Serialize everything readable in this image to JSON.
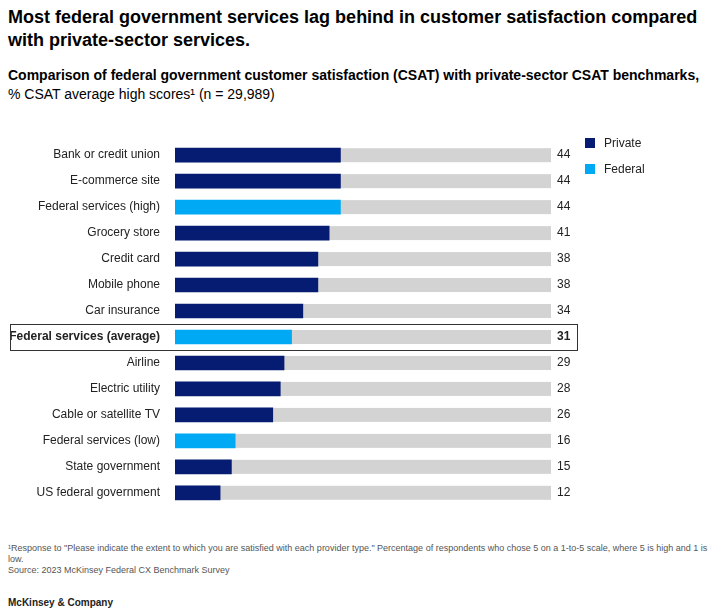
{
  "chart_data": {
    "type": "bar",
    "orientation": "horizontal",
    "title": "Most federal government services lag behind in customer satisfaction compared with private-sector services.",
    "subtitle": "Comparison of federal government customer satisfaction (CSAT) with private-sector CSAT benchmarks, % CSAT average high scores¹ (n = 29,989)",
    "categories": [
      "Bank or credit union",
      "E-commerce site",
      "Federal services (high)",
      "Grocery store",
      "Credit card",
      "Mobile phone",
      "Car insurance",
      "Federal services (average)",
      "Airline",
      "Electric utility",
      "Cable or satellite TV",
      "Federal services (low)",
      "State government",
      "US federal government"
    ],
    "series": [
      {
        "name": "Private",
        "color": "#051c72",
        "values": [
          44,
          44,
          null,
          41,
          38,
          38,
          34,
          null,
          29,
          28,
          26,
          null,
          15,
          12
        ]
      },
      {
        "name": "Federal",
        "color": "#00a9f4",
        "values": [
          null,
          null,
          44,
          null,
          null,
          null,
          null,
          31,
          null,
          null,
          null,
          16,
          null,
          null
        ]
      }
    ],
    "stacked": true,
    "xlim": [
      0,
      100
    ],
    "tick_labels": "y",
    "grid": false,
    "data_labels": true,
    "legend": "top right",
    "footnote": "¹Response to \"Please indicate the extent to which you are satisfied with each provider type.\" Percentage of respondents who chose 5 on a 1-to-5 scale, where 5 is high and 1 is low.",
    "source": "Source: 2023 McKinsey Federal CX Benchmark Survey",
    "brand": "McKinsey & Company"
  }
}
